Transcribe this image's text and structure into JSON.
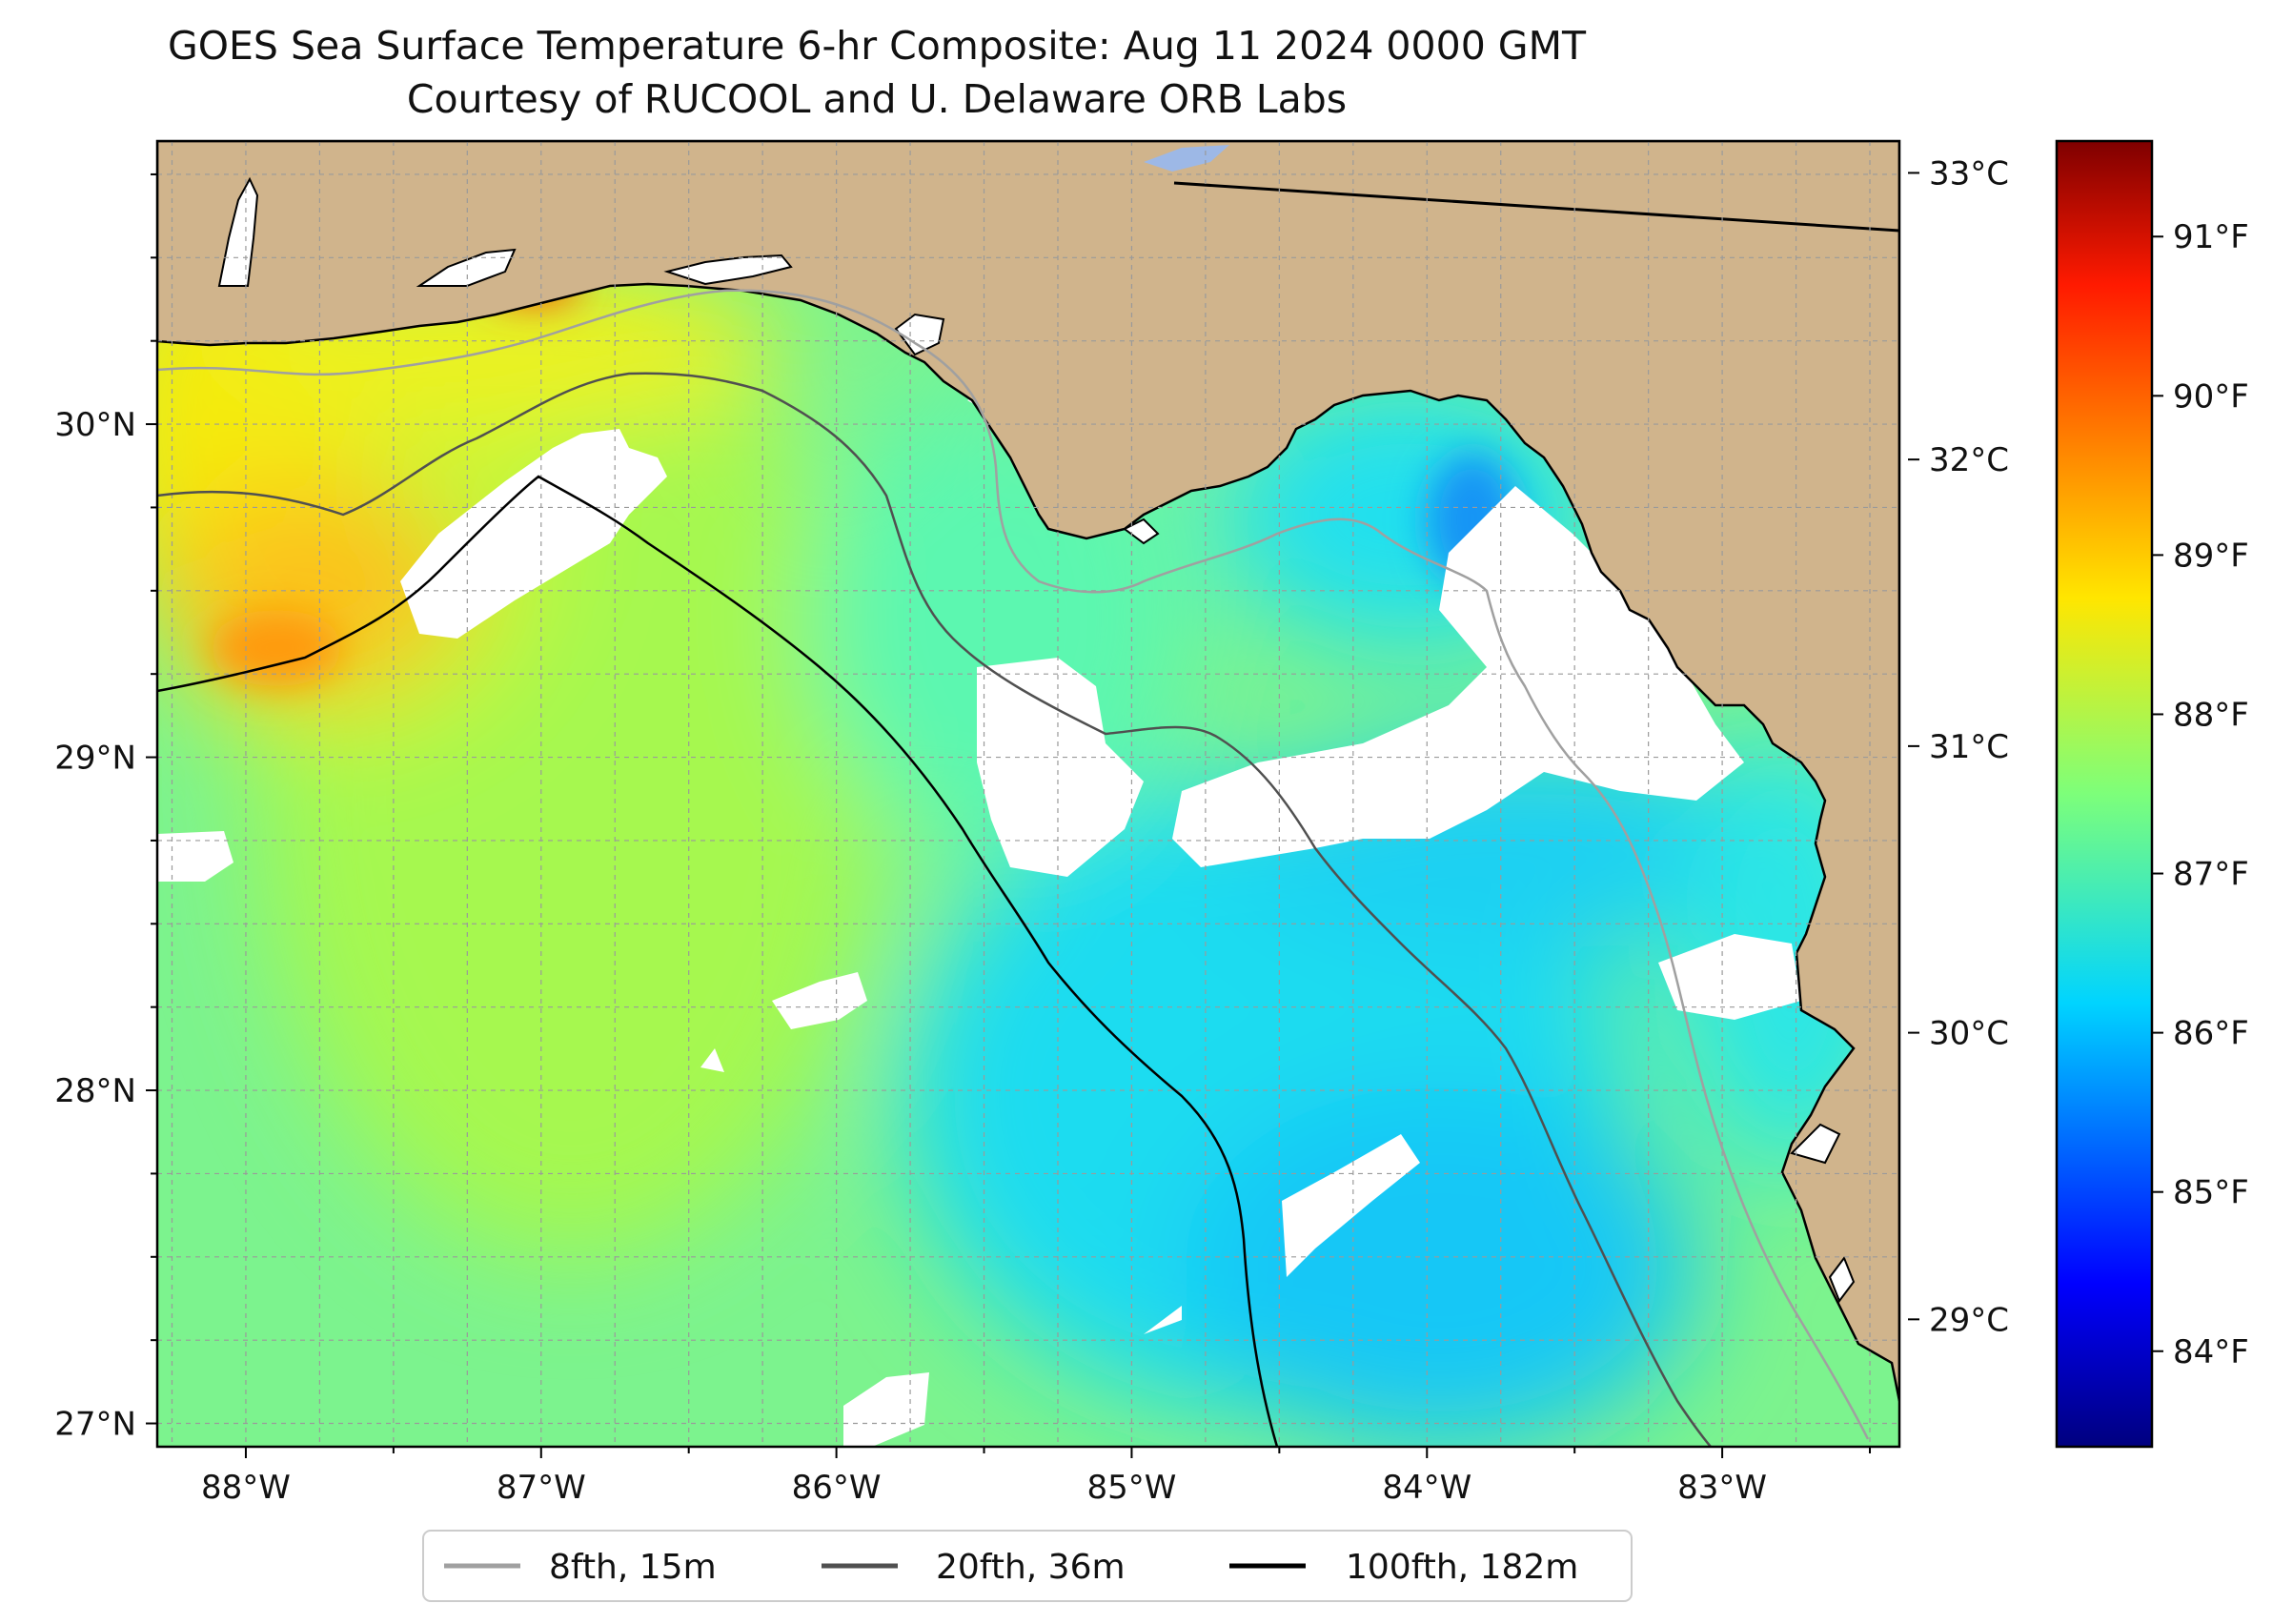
{
  "title_line1": "GOES Sea Surface Temperature 6-hr Composite: Aug 11 2024 0000 GMT",
  "title_line2": "Courtesy of RUCOOL and U. Delaware ORB Labs",
  "map": {
    "lon_range": [
      -88.3,
      -82.4
    ],
    "lat_range": [
      26.93,
      30.85
    ],
    "lon_ticks": [
      {
        "value": -88,
        "label": "88°W"
      },
      {
        "value": -87,
        "label": "87°W"
      },
      {
        "value": -86,
        "label": "86°W"
      },
      {
        "value": -85,
        "label": "85°W"
      },
      {
        "value": -84,
        "label": "84°W"
      },
      {
        "value": -83,
        "label": "83°W"
      }
    ],
    "lat_ticks": [
      {
        "value": 30,
        "label": "30°N"
      },
      {
        "value": 29,
        "label": "29°N"
      },
      {
        "value": 28,
        "label": "28°N"
      },
      {
        "value": 27,
        "label": "27°N"
      }
    ],
    "colors": {
      "land": "#d0b48c",
      "no_data": "#ffffff",
      "lake": "#9db8e6",
      "grid": "#9a9a9a"
    }
  },
  "colorbar": {
    "range_f": [
      83.4,
      91.6
    ],
    "celsius_ticks": [
      {
        "value": 33,
        "label": "33°C"
      },
      {
        "value": 32,
        "label": "32°C"
      },
      {
        "value": 31,
        "label": "31°C"
      },
      {
        "value": 30,
        "label": "30°C"
      },
      {
        "value": 29,
        "label": "29°C"
      }
    ],
    "fahrenheit_ticks": [
      {
        "value": 91,
        "label": "91°F"
      },
      {
        "value": 90,
        "label": "90°F"
      },
      {
        "value": 89,
        "label": "89°F"
      },
      {
        "value": 88,
        "label": "88°F"
      },
      {
        "value": 87,
        "label": "87°F"
      },
      {
        "value": 86,
        "label": "86°F"
      },
      {
        "value": 85,
        "label": "85°F"
      },
      {
        "value": 84,
        "label": "84°F"
      }
    ],
    "colormap": "jet"
  },
  "legend": {
    "items": [
      {
        "label": "8fth, 15m",
        "color": "#a0a0a0"
      },
      {
        "label": "20fth, 36m",
        "color": "#505050"
      },
      {
        "label": "100fth, 182m",
        "color": "#000000"
      }
    ]
  }
}
